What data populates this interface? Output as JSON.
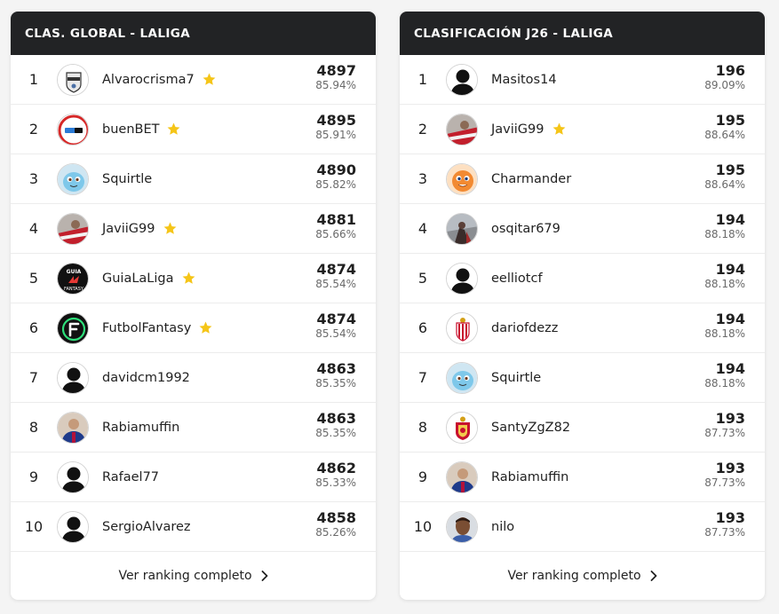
{
  "global": {
    "title": "CLAS. GLOBAL - LALIGA",
    "footer": "Ver ranking completo",
    "rows": [
      {
        "rank": "1",
        "name": "Alvarocrisma7",
        "points": "4897",
        "pct": "85.94%",
        "star": true,
        "avatar": "badge"
      },
      {
        "rank": "2",
        "name": "buenBET",
        "points": "4895",
        "pct": "85.91%",
        "star": true,
        "avatar": "bet"
      },
      {
        "rank": "3",
        "name": "Squirtle",
        "points": "4890",
        "pct": "85.82%",
        "star": false,
        "avatar": "squirtle"
      },
      {
        "rank": "4",
        "name": "JaviiG99",
        "points": "4881",
        "pct": "85.66%",
        "star": true,
        "avatar": "photo-red"
      },
      {
        "rank": "5",
        "name": "GuiaLaLiga",
        "points": "4874",
        "pct": "85.54%",
        "star": true,
        "avatar": "guia"
      },
      {
        "rank": "6",
        "name": "FutbolFantasy",
        "points": "4874",
        "pct": "85.54%",
        "star": true,
        "avatar": "ff"
      },
      {
        "rank": "7",
        "name": "davidcm1992",
        "points": "4863",
        "pct": "85.35%",
        "star": false,
        "avatar": "silhouette"
      },
      {
        "rank": "8",
        "name": "Rabiamuffin",
        "points": "4863",
        "pct": "85.35%",
        "star": false,
        "avatar": "photo-blue"
      },
      {
        "rank": "9",
        "name": "Rafael77",
        "points": "4862",
        "pct": "85.33%",
        "star": false,
        "avatar": "silhouette"
      },
      {
        "rank": "10",
        "name": "SergioAlvarez",
        "points": "4858",
        "pct": "85.26%",
        "star": false,
        "avatar": "silhouette"
      }
    ]
  },
  "jornada": {
    "title": "CLASIFICACIÓN J26 - LALIGA",
    "footer": "Ver ranking completo",
    "rows": [
      {
        "rank": "1",
        "name": "Masitos14",
        "points": "196",
        "pct": "89.09%",
        "star": false,
        "avatar": "silhouette"
      },
      {
        "rank": "2",
        "name": "JaviiG99",
        "points": "195",
        "pct": "88.64%",
        "star": true,
        "avatar": "photo-red"
      },
      {
        "rank": "3",
        "name": "Charmander",
        "points": "195",
        "pct": "88.64%",
        "star": false,
        "avatar": "charmander"
      },
      {
        "rank": "4",
        "name": "osqitar679",
        "points": "194",
        "pct": "88.18%",
        "star": false,
        "avatar": "photo-dark"
      },
      {
        "rank": "5",
        "name": "eelliotcf",
        "points": "194",
        "pct": "88.18%",
        "star": false,
        "avatar": "silhouette"
      },
      {
        "rank": "6",
        "name": "dariofdezz",
        "points": "194",
        "pct": "88.18%",
        "star": false,
        "avatar": "crest-red"
      },
      {
        "rank": "7",
        "name": "Squirtle",
        "points": "194",
        "pct": "88.18%",
        "star": false,
        "avatar": "squirtle"
      },
      {
        "rank": "8",
        "name": "SantyZgZ82",
        "points": "193",
        "pct": "87.73%",
        "star": false,
        "avatar": "crest-zgz"
      },
      {
        "rank": "9",
        "name": "Rabiamuffin",
        "points": "193",
        "pct": "87.73%",
        "star": false,
        "avatar": "photo-blue"
      },
      {
        "rank": "10",
        "name": "nilo",
        "points": "193",
        "pct": "87.73%",
        "star": false,
        "avatar": "photo-face"
      }
    ]
  },
  "colors": {
    "header_bg": "#222325",
    "star": "#f5c518"
  }
}
